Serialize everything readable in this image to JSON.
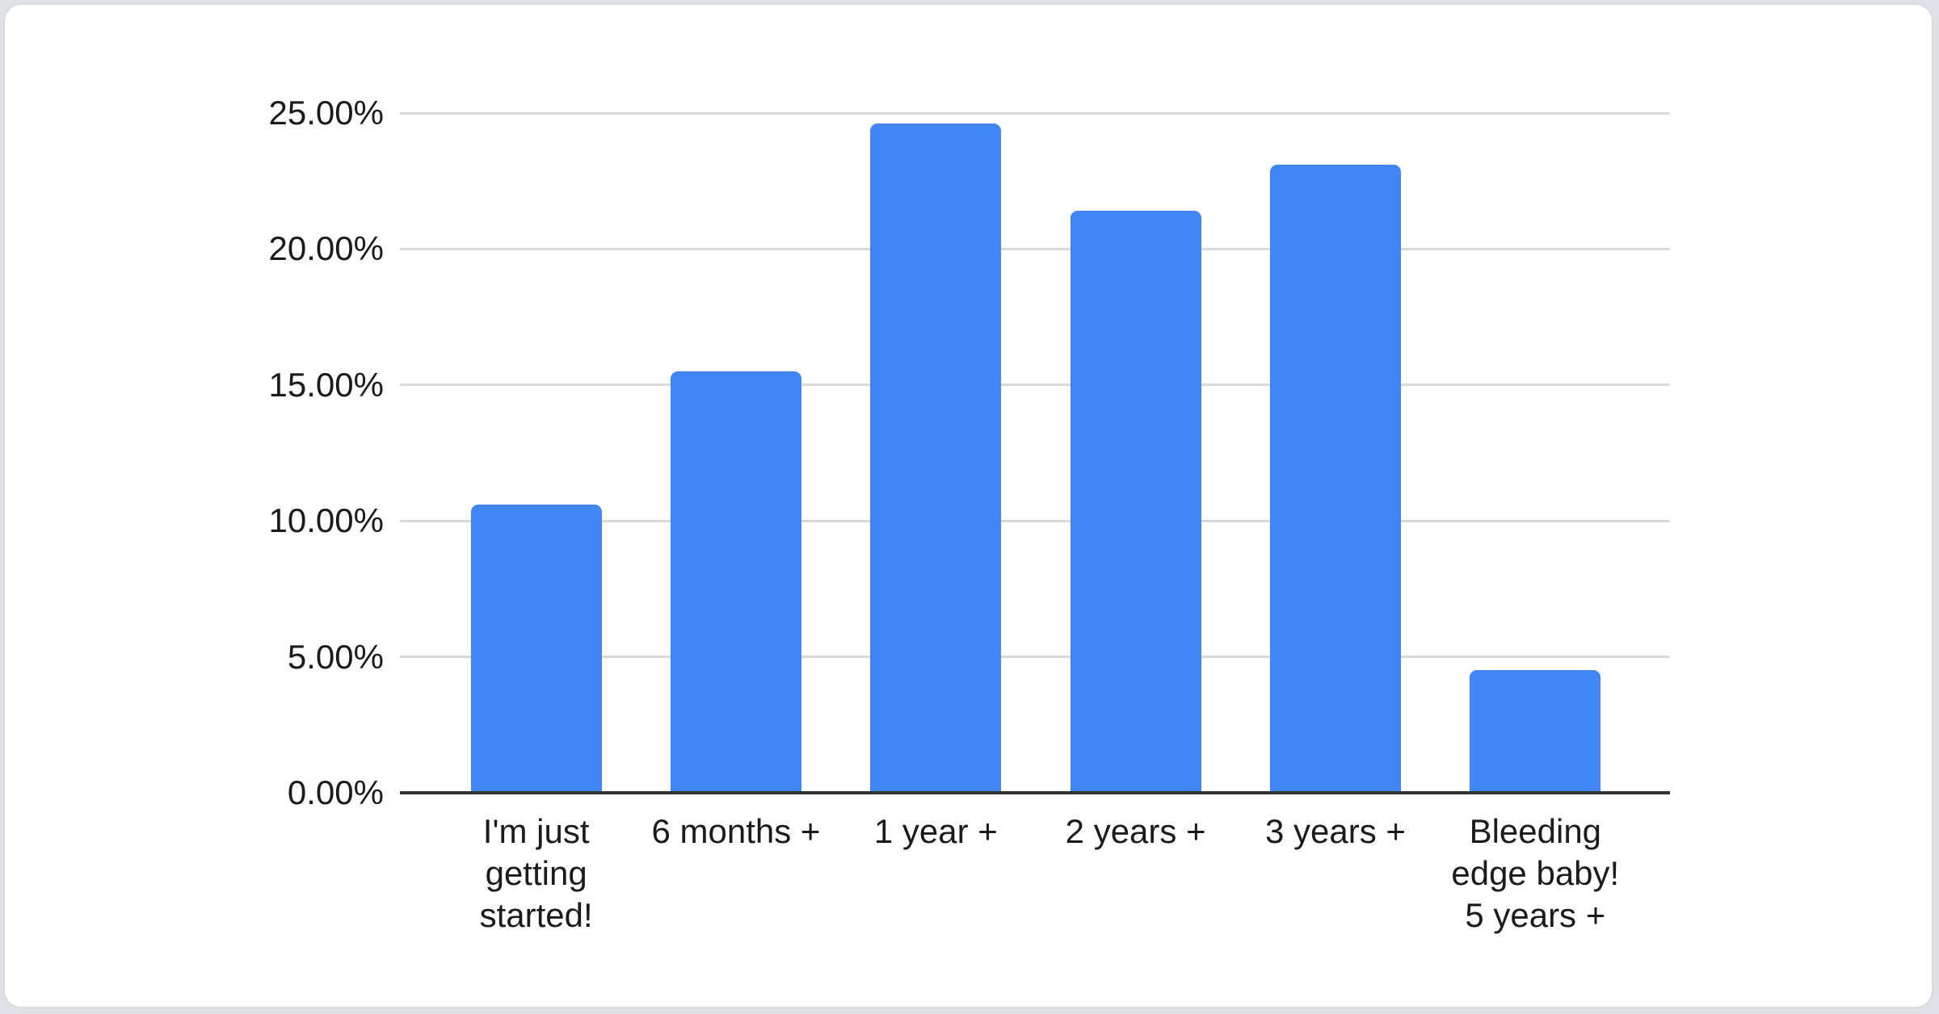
{
  "page": {
    "background_color": "#dee1e5",
    "card_color": "#ffffff"
  },
  "chart_data": {
    "type": "bar",
    "title": "",
    "xlabel": "",
    "ylabel": "",
    "categories": [
      "I'm just getting started!",
      "6 months +",
      "1 year +",
      "2 years +",
      "3 years +",
      "Bleeding edge baby! 5 years +"
    ],
    "values": [
      10.6,
      15.5,
      24.6,
      21.4,
      23.1,
      4.5
    ],
    "unit": "%",
    "ylim": [
      0,
      25
    ],
    "ytick_step": 5,
    "ytick_labels": [
      "0.00%",
      "5.00%",
      "10.00%",
      "15.00%",
      "20.00%",
      "25.00%"
    ],
    "grid": true,
    "legend": "none",
    "colors": {
      "bar": "#4285f4",
      "gridline": "#d9d9d9",
      "axis_line": "#333333",
      "text": "#1b1b1b"
    }
  }
}
